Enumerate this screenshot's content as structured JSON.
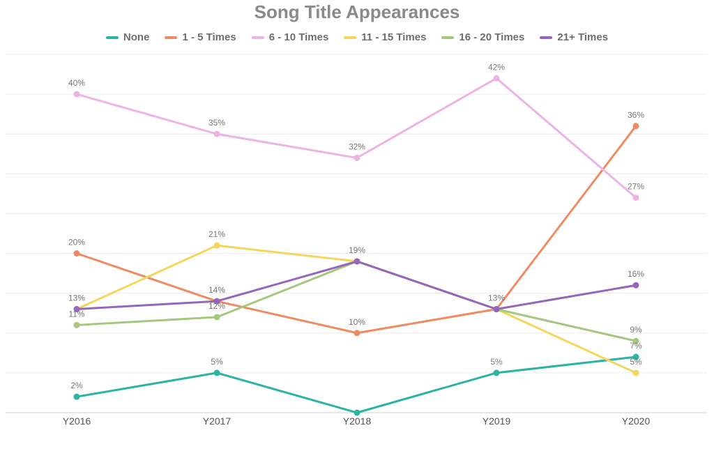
{
  "chart_data": {
    "type": "line",
    "title": "Song Title Appearances",
    "xlabel": "",
    "ylabel": "",
    "categories": [
      "Y2016",
      "Y2017",
      "Y2018",
      "Y2019",
      "Y2020"
    ],
    "ylim": [
      0,
      45
    ],
    "value_suffix": "%",
    "grid": true,
    "legend_position": "top",
    "series": [
      {
        "name": "None",
        "color": "#2bb3a3",
        "values": [
          2,
          5,
          0,
          5,
          7
        ],
        "labels": [
          "2%",
          "5%",
          "",
          "5%",
          "7%"
        ]
      },
      {
        "name": "1 - 5 Times",
        "color": "#ef8a62",
        "values": [
          20,
          14,
          10,
          13,
          36
        ],
        "labels": [
          "20%",
          "",
          "10%",
          "",
          "36%"
        ]
      },
      {
        "name": "6 - 10 Times",
        "color": "#ecb3e3",
        "values": [
          40,
          35,
          32,
          42,
          27
        ],
        "labels": [
          "40%",
          "35%",
          "32%",
          "42%",
          "27%"
        ]
      },
      {
        "name": "11 - 15 Times",
        "color": "#f6d55c",
        "values": [
          13,
          21,
          19,
          13,
          5
        ],
        "labels": [
          "",
          "21%",
          "",
          "",
          "5%"
        ]
      },
      {
        "name": "16 - 20 Times",
        "color": "#a6c77e",
        "values": [
          11,
          12,
          19,
          13,
          9
        ],
        "labels": [
          "11%",
          "12%",
          "",
          "",
          "9%"
        ]
      },
      {
        "name": "21+ Times",
        "color": "#9467bd",
        "values": [
          13,
          14,
          19,
          13,
          16
        ],
        "labels": [
          "13%",
          "14%",
          "19%",
          "13%",
          "16%"
        ]
      }
    ]
  }
}
